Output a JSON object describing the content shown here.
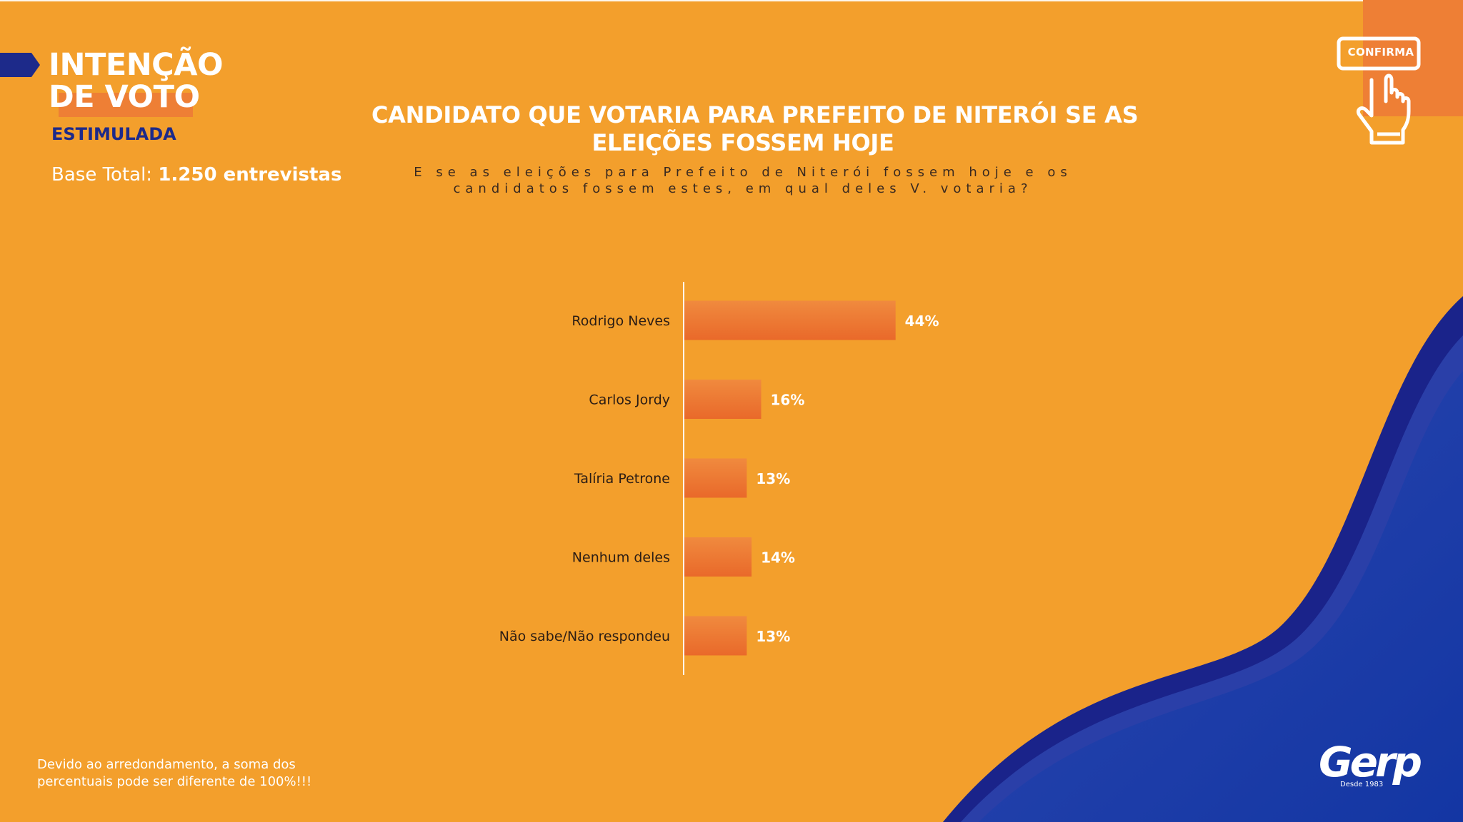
{
  "header": {
    "title_line1": "INTENÇÃO",
    "title_line2": "DE VOTO",
    "subtitle": "ESTIMULADA",
    "base_label": "Base Total:",
    "base_value": "1.250 entrevistas"
  },
  "badge": {
    "label": "CONFIRMA",
    "icon": "hand-pointer-icon"
  },
  "question": {
    "line1": "E se as eleições para Prefeito de Niterói fossem hoje e os",
    "line2": "candidatos fossem estes, em qual deles V. votaria?"
  },
  "footer": {
    "note_line1": "Devido ao arredondamento, a soma dos",
    "note_line2": "percentuais pode ser diferente de 100%!!!",
    "logo": "Gerp",
    "logo_sub": "Desde 1983"
  },
  "colors": {
    "background": "#f39f2c",
    "bar": "#ee7a33",
    "accent_orange": "#ee7f35",
    "navy": "#1d2a8a",
    "wave_blue": "#1f3fa0"
  },
  "chart_data": {
    "type": "bar",
    "orientation": "horizontal",
    "title_line1": "CANDIDATO QUE VOTARIA PARA PREFEITO DE NITERÓI SE AS",
    "title_line2": "ELEIÇÕES FOSSEM HOJE",
    "categories": [
      "Rodrigo Neves",
      "Carlos Jordy",
      "Talíria Petrone",
      "Nenhum deles",
      "Não sabe/Não respondeu"
    ],
    "values": [
      44,
      16,
      13,
      14,
      13
    ],
    "value_labels": [
      "44%",
      "16%",
      "13%",
      "14%",
      "13%"
    ],
    "unit": "%",
    "xlim": [
      0,
      100
    ],
    "grid": false,
    "legend": "none"
  }
}
